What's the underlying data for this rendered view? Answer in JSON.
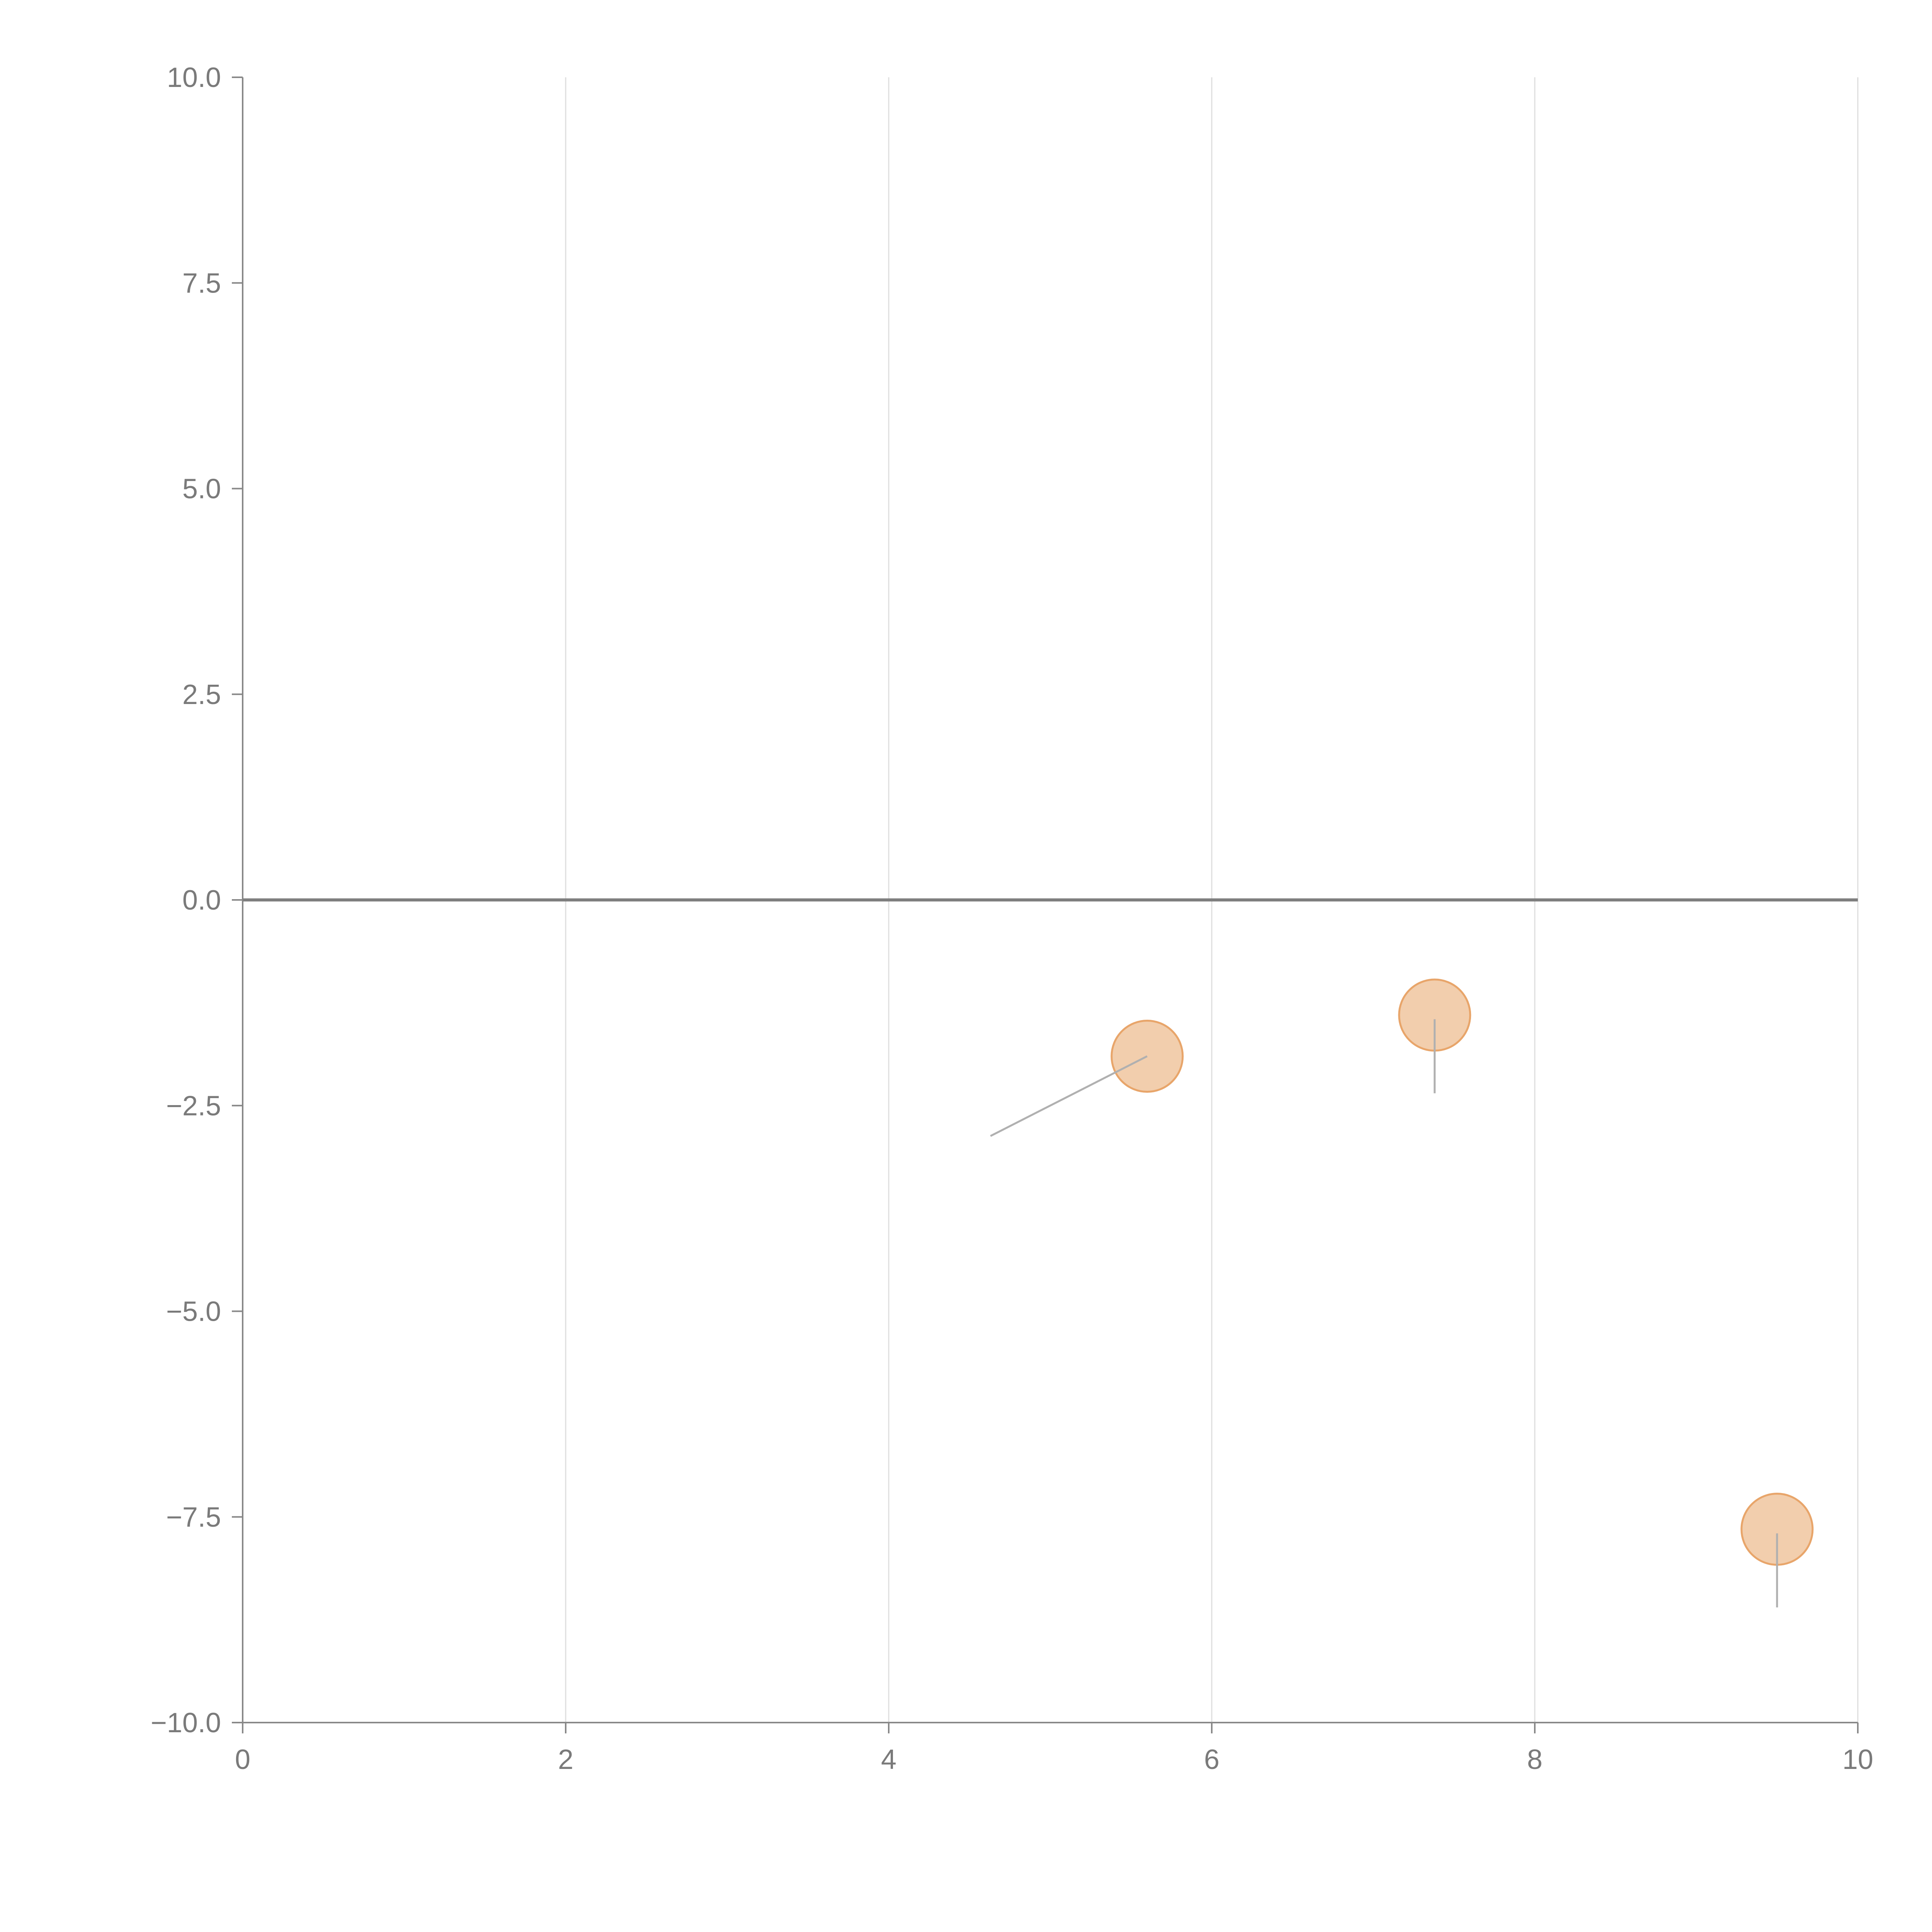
{
  "chart_data": {
    "type": "scatter",
    "title": "",
    "xlabel": "",
    "ylabel": "",
    "xlim": [
      0,
      10
    ],
    "ylim": [
      -10,
      10
    ],
    "x_ticks": [
      0,
      2,
      4,
      6,
      8,
      10
    ],
    "x_tick_labels": [
      "0",
      "2",
      "4",
      "6",
      "8",
      "10"
    ],
    "y_ticks": [
      10,
      7.5,
      5,
      2.5,
      0,
      -2.5,
      -5,
      -7.5,
      -10
    ],
    "y_tick_labels": [
      "10.0",
      "7.5",
      "5.0",
      "2.5",
      "0.0",
      "−2.5",
      "−5.0",
      "−7.5",
      "−10.0"
    ],
    "grid": "vertical",
    "zero_line": true,
    "colors": {
      "point_fill": "#e8a56a",
      "point_stroke": "#e8a56a",
      "connector": "#b0b0b0",
      "axis": "#888888",
      "grid": "#dedede",
      "text": "#7a7a7a"
    },
    "series": [
      {
        "points": [
          {
            "x": 5.6,
            "y": -1.9
          },
          {
            "x": 7.38,
            "y": -1.4
          },
          {
            "x": 9.5,
            "y": -7.65
          }
        ]
      }
    ],
    "connectors": [
      {
        "from": [
          4.63,
          -2.87
        ],
        "to": [
          5.6,
          -1.9
        ]
      },
      {
        "from": [
          7.38,
          -1.45
        ],
        "to": [
          7.38,
          -2.35
        ]
      },
      {
        "from": [
          9.5,
          -7.7
        ],
        "to": [
          9.5,
          -8.6
        ]
      }
    ]
  }
}
